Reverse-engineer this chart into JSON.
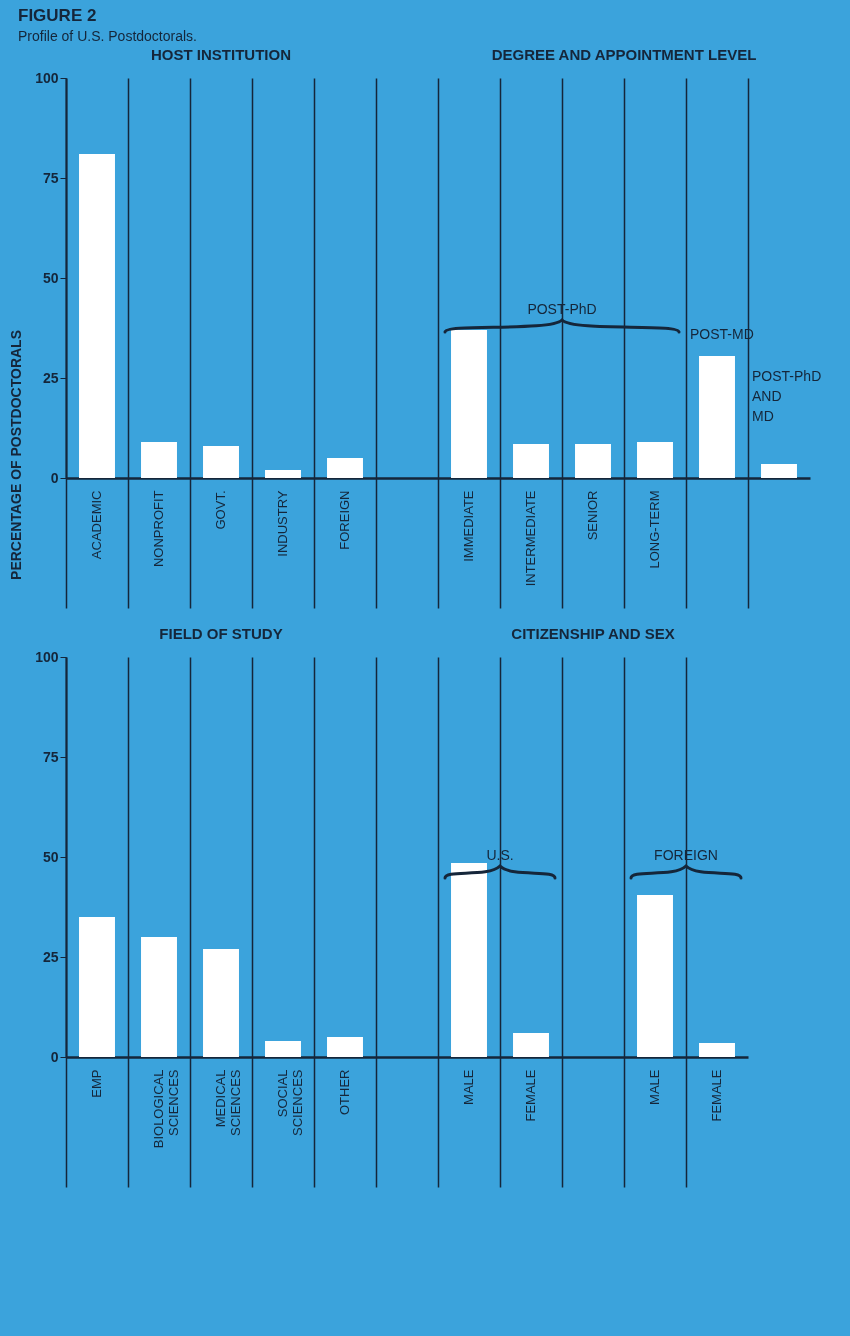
{
  "chart_data": [
    {
      "type": "bar",
      "title": "FIGURE 2",
      "subtitle": "Profile of U.S. Postdoctorals.",
      "ylabel": "PERCENTAGE OF POSTDOCTORALS",
      "annotations": [
        "HOST INSTITUTION",
        "DEGREE AND APPOINTMENT LEVEL",
        "POST-PhD",
        "POST-MD",
        "POST-PhD AND MD"
      ],
      "categories": [
        "ACADEMIC",
        "NONPROFIT",
        "GOVT.",
        "INDUSTRY",
        "FOREIGN",
        null,
        "IMMEDIATE",
        "INTERMEDIATE",
        "SENIOR",
        "LONG-TERM",
        null,
        null
      ],
      "values": [
        81,
        9,
        8,
        2,
        5,
        null,
        37,
        8.5,
        8.5,
        9,
        30.5,
        3.5
      ],
      "color": "#ffffff",
      "ylim": [
        0,
        100
      ],
      "yticks": [
        0,
        25,
        50,
        75,
        100
      ],
      "grid": "x"
    },
    {
      "type": "bar",
      "annotations": [
        "FIELD OF STUDY",
        "CITIZENSHIP AND SEX",
        "U.S.",
        "FOREIGN"
      ],
      "categories": [
        "EMP",
        "BIOLOGICAL SCIENCES",
        "MEDICAL SCIENCES",
        "SOCIAL SCIENCES",
        "OTHER",
        null,
        "MALE",
        "FEMALE",
        null,
        "MALE",
        "FEMALE"
      ],
      "values": [
        35,
        30,
        27,
        4,
        5,
        null,
        48.5,
        6,
        null,
        40.5,
        3.5
      ],
      "color": "#ffffff",
      "ylim": [
        0,
        100
      ],
      "yticks": [
        0,
        25,
        50,
        75,
        100
      ],
      "grid": "x"
    }
  ]
}
